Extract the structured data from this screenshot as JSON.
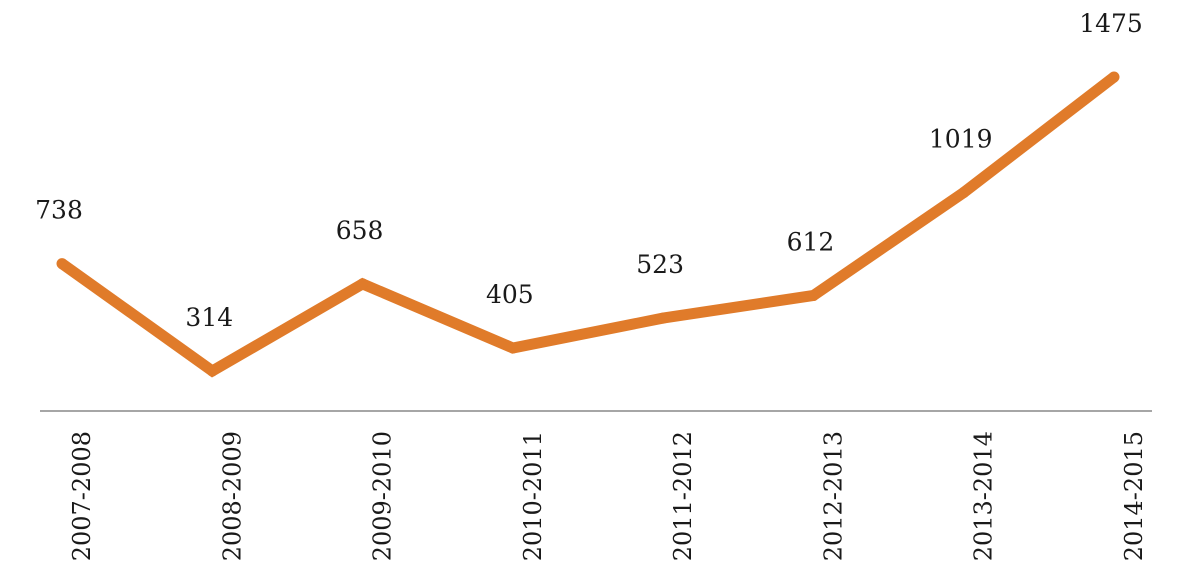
{
  "chart_data": {
    "type": "line",
    "title": "",
    "xlabel": "",
    "ylabel": "",
    "categories": [
      "2007-2008",
      "2008-2009",
      "2009-2010",
      "2010-2011",
      "2011-2012",
      "2012-2013",
      "2013-2014",
      "2014-2015"
    ],
    "series": [
      {
        "values": [
          738,
          314,
          658,
          405,
          523,
          612,
          1019,
          1475
        ],
        "color": "#e07b2a"
      }
    ],
    "data_labels": [
      "738",
      "314",
      "658",
      "405",
      "523",
      "612",
      "1019",
      "1475"
    ],
    "grid": false,
    "legend": "none",
    "colors": {
      "line": "#e07b2a",
      "axis": "#888888",
      "text": "#1a1a1a"
    }
  }
}
